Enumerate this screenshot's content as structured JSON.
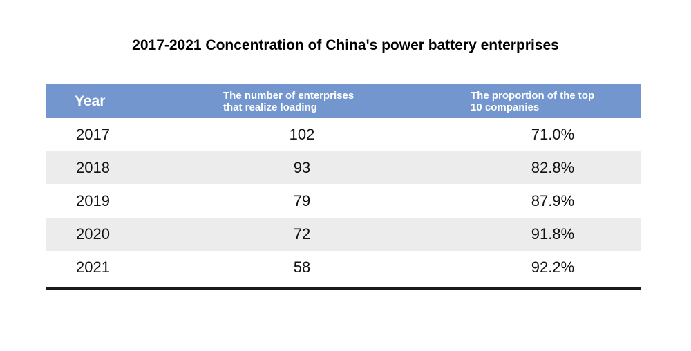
{
  "chart_data": {
    "type": "table",
    "title": "2017-2021 Concentration of China's power battery enterprises",
    "columns": [
      "Year",
      "The number of enterprises that realize loading",
      "The proportion of the top 10 companies"
    ],
    "header_lines": {
      "enterprises": [
        "The number of enterprises",
        "that realize loading"
      ],
      "proportion": [
        "The proportion of the top",
        "10 companies"
      ]
    },
    "rows": [
      {
        "year": "2017",
        "enterprises": "102",
        "proportion": "71.0%"
      },
      {
        "year": "2018",
        "enterprises": "93",
        "proportion": "82.8%"
      },
      {
        "year": "2019",
        "enterprises": "79",
        "proportion": "87.9%"
      },
      {
        "year": "2020",
        "enterprises": "72",
        "proportion": "91.8%"
      },
      {
        "year": "2021",
        "enterprises": "58",
        "proportion": "92.2%"
      }
    ],
    "colors": {
      "header_background": "#7396cf",
      "header_text": "#ffffff",
      "shaded_row": "#ececec",
      "bottom_rule": "#1a1a1a"
    }
  }
}
